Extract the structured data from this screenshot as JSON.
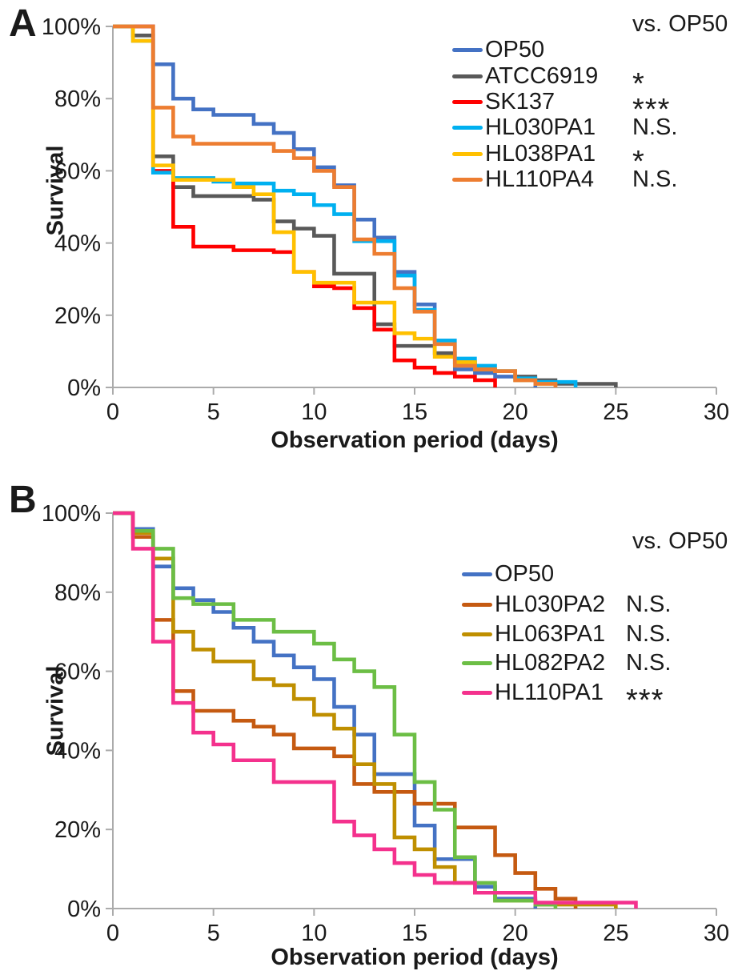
{
  "style": {
    "axis_color": "#ABABAB",
    "text_color": "#1a1a1a",
    "background": "#ffffff"
  },
  "chart_data": [
    {
      "type": "line",
      "subtype": "kaplan-meier-step-survival",
      "panel_label": "A",
      "legend_title": "vs. OP50",
      "xlabel": "Observation period (days)",
      "ylabel": "Survival",
      "xlim": [
        0,
        30
      ],
      "ylim": [
        0,
        100
      ],
      "x_ticks": [
        0,
        5,
        10,
        15,
        20,
        25,
        30
      ],
      "y_tick_labels": [
        "100%",
        "80%",
        "60%",
        "40%",
        "20%",
        "0%"
      ],
      "grid": false,
      "legend_position": "top-right",
      "series": [
        {
          "name": "OP50",
          "color": "#4472C4",
          "significance": "",
          "points": [
            [
              0,
              100
            ],
            [
              2,
              89.5
            ],
            [
              3,
              80
            ],
            [
              4,
              77
            ],
            [
              5,
              75.5
            ],
            [
              7,
              73
            ],
            [
              8,
              70.5
            ],
            [
              9,
              66
            ],
            [
              10,
              61
            ],
            [
              11,
              56
            ],
            [
              12,
              46.5
            ],
            [
              13,
              41.5
            ],
            [
              14,
              32
            ],
            [
              15,
              23
            ],
            [
              16,
              13
            ],
            [
              17,
              5
            ],
            [
              18,
              4
            ],
            [
              19,
              3
            ],
            [
              20,
              2
            ],
            [
              21,
              0
            ]
          ]
        },
        {
          "name": "ATCC6919",
          "color": "#595959",
          "significance": "*",
          "points": [
            [
              0,
              100
            ],
            [
              1,
              97.5
            ],
            [
              2,
              64
            ],
            [
              3,
              55.5
            ],
            [
              4,
              53
            ],
            [
              7,
              52
            ],
            [
              8,
              46
            ],
            [
              9,
              44
            ],
            [
              10,
              42
            ],
            [
              11,
              31.5
            ],
            [
              13,
              17.5
            ],
            [
              14,
              11.5
            ],
            [
              16,
              9.5
            ],
            [
              17,
              7
            ],
            [
              18,
              5
            ],
            [
              19,
              4.5
            ],
            [
              20,
              3
            ],
            [
              21,
              2
            ],
            [
              22,
              1
            ],
            [
              25,
              0
            ]
          ]
        },
        {
          "name": "SK137",
          "color": "#FF0000",
          "significance": "***",
          "points": [
            [
              0,
              100
            ],
            [
              2,
              60
            ],
            [
              3,
              44.5
            ],
            [
              4,
              39
            ],
            [
              6,
              38
            ],
            [
              8,
              37.5
            ],
            [
              9,
              32
            ],
            [
              10,
              28
            ],
            [
              11,
              27.5
            ],
            [
              12,
              22
            ],
            [
              13,
              16
            ],
            [
              14,
              7.5
            ],
            [
              15,
              5.5
            ],
            [
              16,
              4
            ],
            [
              17,
              3
            ],
            [
              18,
              2
            ],
            [
              19,
              0
            ]
          ]
        },
        {
          "name": "HL030PA1",
          "color": "#00B0F0",
          "significance": "N.S.",
          "points": [
            [
              0,
              100
            ],
            [
              1,
              96
            ],
            [
              2,
              59.5
            ],
            [
              3,
              58
            ],
            [
              5,
              57
            ],
            [
              6,
              56.5
            ],
            [
              8,
              54.5
            ],
            [
              9,
              53.5
            ],
            [
              10,
              50.5
            ],
            [
              11,
              48
            ],
            [
              12,
              40.5
            ],
            [
              14,
              31
            ],
            [
              15,
              21.5
            ],
            [
              16,
              13
            ],
            [
              17,
              8
            ],
            [
              18,
              6
            ],
            [
              19,
              4.5
            ],
            [
              20,
              2.5
            ],
            [
              21,
              1.5
            ],
            [
              23,
              0
            ]
          ]
        },
        {
          "name": "HL038PA1",
          "color": "#FFC000",
          "significance": "*",
          "points": [
            [
              0,
              100
            ],
            [
              1,
              96
            ],
            [
              2,
              61.5
            ],
            [
              3,
              57.5
            ],
            [
              6,
              55.5
            ],
            [
              7,
              53.5
            ],
            [
              8,
              43
            ],
            [
              9,
              32
            ],
            [
              10,
              29
            ],
            [
              12,
              23.5
            ],
            [
              14,
              15
            ],
            [
              15,
              13.5
            ],
            [
              16,
              8.5
            ],
            [
              17,
              7
            ],
            [
              18,
              5
            ],
            [
              19,
              4.5
            ],
            [
              20,
              2
            ],
            [
              21,
              1
            ],
            [
              22,
              0
            ]
          ]
        },
        {
          "name": "HL110PA4",
          "color": "#ED7D31",
          "significance": "N.S.",
          "points": [
            [
              0,
              100
            ],
            [
              2,
              77.5
            ],
            [
              3,
              69.5
            ],
            [
              4,
              67.5
            ],
            [
              8,
              65.5
            ],
            [
              9,
              63.5
            ],
            [
              10,
              60
            ],
            [
              11,
              55.5
            ],
            [
              12,
              41
            ],
            [
              13,
              37
            ],
            [
              14,
              27.5
            ],
            [
              15,
              21
            ],
            [
              16,
              12
            ],
            [
              17,
              6
            ],
            [
              18,
              5
            ],
            [
              19,
              4.5
            ],
            [
              20,
              2
            ],
            [
              21,
              1
            ],
            [
              22,
              0
            ]
          ]
        }
      ]
    },
    {
      "type": "line",
      "subtype": "kaplan-meier-step-survival",
      "panel_label": "B",
      "legend_title": "vs. OP50",
      "xlabel": "Observation period (days)",
      "ylabel": "Survival",
      "xlim": [
        0,
        30
      ],
      "ylim": [
        0,
        100
      ],
      "x_ticks": [
        0,
        5,
        10,
        15,
        20,
        25,
        30
      ],
      "y_tick_labels": [
        "100%",
        "80%",
        "60%",
        "40%",
        "20%",
        "0%"
      ],
      "grid": false,
      "legend_position": "top-right",
      "series": [
        {
          "name": "OP50",
          "color": "#4472C4",
          "significance": "",
          "points": [
            [
              0,
              100
            ],
            [
              1,
              96
            ],
            [
              2,
              86.5
            ],
            [
              3,
              81
            ],
            [
              4,
              78
            ],
            [
              5,
              75
            ],
            [
              6,
              71
            ],
            [
              7,
              67.5
            ],
            [
              8,
              64
            ],
            [
              9,
              61
            ],
            [
              10,
              58
            ],
            [
              11,
              51
            ],
            [
              12,
              44
            ],
            [
              13,
              34
            ],
            [
              15,
              21
            ],
            [
              16,
              12.5
            ],
            [
              18,
              5.5
            ],
            [
              19,
              2.5
            ],
            [
              21,
              0
            ]
          ]
        },
        {
          "name": "HL030PA2",
          "color": "#C55A11",
          "significance": "N.S.",
          "points": [
            [
              0,
              100
            ],
            [
              1,
              94
            ],
            [
              2,
              73
            ],
            [
              3,
              55
            ],
            [
              4,
              50
            ],
            [
              6,
              47.5
            ],
            [
              7,
              46
            ],
            [
              8,
              44
            ],
            [
              9,
              40.5
            ],
            [
              11,
              38.5
            ],
            [
              12,
              31.5
            ],
            [
              13,
              29.5
            ],
            [
              15,
              26.5
            ],
            [
              17,
              20.5
            ],
            [
              19,
              13.5
            ],
            [
              20,
              9
            ],
            [
              21,
              5
            ],
            [
              22,
              2.5
            ],
            [
              23,
              0
            ]
          ]
        },
        {
          "name": "HL063PA1",
          "color": "#BF8F00",
          "significance": "N.S.",
          "points": [
            [
              0,
              100
            ],
            [
              1,
              95
            ],
            [
              2,
              88.5
            ],
            [
              3,
              70
            ],
            [
              4,
              65.5
            ],
            [
              5,
              62.5
            ],
            [
              7,
              58
            ],
            [
              8,
              56.5
            ],
            [
              9,
              53
            ],
            [
              10,
              49
            ],
            [
              11,
              45.5
            ],
            [
              12,
              36.5
            ],
            [
              13,
              31.5
            ],
            [
              14,
              18
            ],
            [
              15,
              15
            ],
            [
              16,
              10.5
            ],
            [
              17,
              6.5
            ],
            [
              18,
              4
            ],
            [
              19,
              2
            ],
            [
              21,
              1
            ],
            [
              25,
              0
            ]
          ]
        },
        {
          "name": "HL082PA2",
          "color": "#6CBE45",
          "significance": "N.S.",
          "points": [
            [
              0,
              100
            ],
            [
              1,
              95.5
            ],
            [
              2,
              91
            ],
            [
              3,
              78.5
            ],
            [
              4,
              77
            ],
            [
              6,
              73
            ],
            [
              8,
              70
            ],
            [
              10,
              67
            ],
            [
              11,
              63
            ],
            [
              12,
              60
            ],
            [
              13,
              56
            ],
            [
              14,
              44
            ],
            [
              15,
              32
            ],
            [
              16,
              25
            ],
            [
              17,
              13
            ],
            [
              18,
              6.5
            ],
            [
              19,
              2
            ],
            [
              21,
              1
            ],
            [
              22,
              0
            ]
          ]
        },
        {
          "name": "HL110PA1",
          "color": "#F4318D",
          "significance": "***",
          "points": [
            [
              0,
              100
            ],
            [
              1,
              91
            ],
            [
              2,
              67.5
            ],
            [
              3,
              52
            ],
            [
              4,
              44.5
            ],
            [
              5,
              41.5
            ],
            [
              6,
              37.5
            ],
            [
              8,
              32
            ],
            [
              11,
              22
            ],
            [
              12,
              18.5
            ],
            [
              13,
              15
            ],
            [
              14,
              11.5
            ],
            [
              15,
              8.5
            ],
            [
              16,
              6.5
            ],
            [
              18,
              4
            ],
            [
              21,
              1.5
            ],
            [
              26,
              0
            ]
          ]
        }
      ]
    }
  ]
}
